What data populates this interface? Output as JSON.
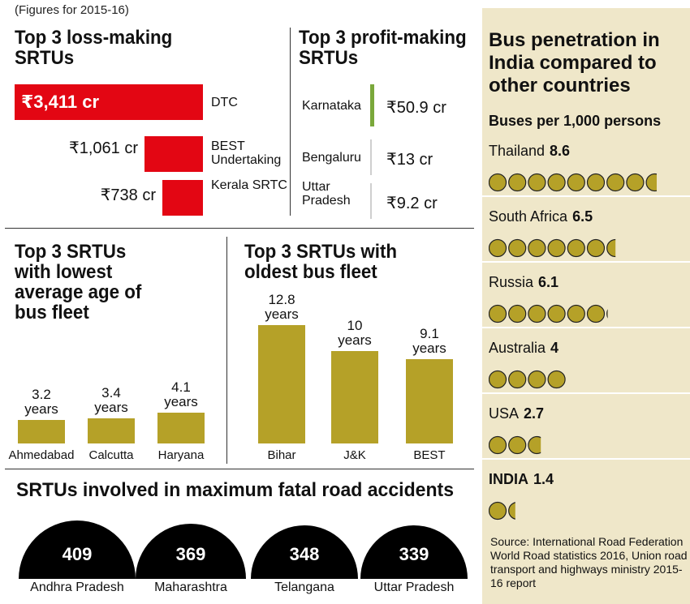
{
  "note": "(Figures for 2015-16)",
  "colors": {
    "loss": "#e30613",
    "profit": "#7aa83b",
    "olive": "#b5a128",
    "panel": "#efe7c9",
    "arch": "#000000"
  },
  "loss_title": "Top 3 loss-making SRTUs",
  "profit_title": "Top 3 profit-making SRTUs",
  "lowest_title": "Top 3 SRTUs with lowest average age of bus fleet",
  "oldest_title": "Top 3 SRTUs with oldest bus fleet",
  "accidents_title": "SRTUs involved in maximum fatal road accidents",
  "panel": {
    "title": "Bus penetration in India compared to other countries",
    "subtitle": "Buses per 1,000 persons",
    "source": "Source: International Road Federation World Road statistics 2016, Union road transport and highways ministry 2015-16 report"
  },
  "chart_data": [
    {
      "type": "bar",
      "title": "Top 3 loss-making SRTUs",
      "categories": [
        "DTC",
        "BEST Undertaking",
        "Kerala SRTC"
      ],
      "values": [
        3411,
        1061,
        738
      ],
      "value_labels": [
        "₹3,411 cr",
        "₹1,061 cr",
        "₹738 cr"
      ],
      "unit": "₹ cr",
      "orientation": "horizontal"
    },
    {
      "type": "bar",
      "title": "Top 3 profit-making SRTUs",
      "categories": [
        "Karnataka",
        "Bengaluru",
        "Uttar Pradesh"
      ],
      "values": [
        50.9,
        13,
        9.2
      ],
      "value_labels": [
        "₹50.9 cr",
        "₹13 cr",
        "₹9.2 cr"
      ],
      "unit": "₹ cr",
      "orientation": "horizontal"
    },
    {
      "type": "bar",
      "title": "Top 3 SRTUs with lowest average age of bus fleet",
      "categories": [
        "Ahmedabad",
        "Calcutta",
        "Haryana"
      ],
      "values": [
        3.2,
        3.4,
        4.1
      ],
      "value_labels": [
        "3.2 years",
        "3.4 years",
        "4.1 years"
      ],
      "unit": "years"
    },
    {
      "type": "bar",
      "title": "Top 3 SRTUs with oldest bus fleet",
      "categories": [
        "Bihar",
        "J&K",
        "BEST"
      ],
      "values": [
        12.8,
        10,
        9.1
      ],
      "value_labels": [
        "12.8 years",
        "10 years",
        "9.1 years"
      ],
      "unit": "years"
    },
    {
      "type": "bar",
      "title": "SRTUs involved in maximum fatal road accidents",
      "categories": [
        "Andhra Pradesh",
        "Maharashtra",
        "Telangana",
        "Uttar Pradesh"
      ],
      "values": [
        409,
        369,
        348,
        339
      ]
    },
    {
      "type": "bar",
      "title": "Bus penetration in India compared to other countries",
      "subtitle": "Buses per 1,000 persons",
      "categories": [
        "Thailand",
        "South Africa",
        "Russia",
        "Australia",
        "USA",
        "INDIA"
      ],
      "values": [
        8.6,
        6.5,
        6.1,
        4,
        2.7,
        1.4
      ]
    }
  ]
}
